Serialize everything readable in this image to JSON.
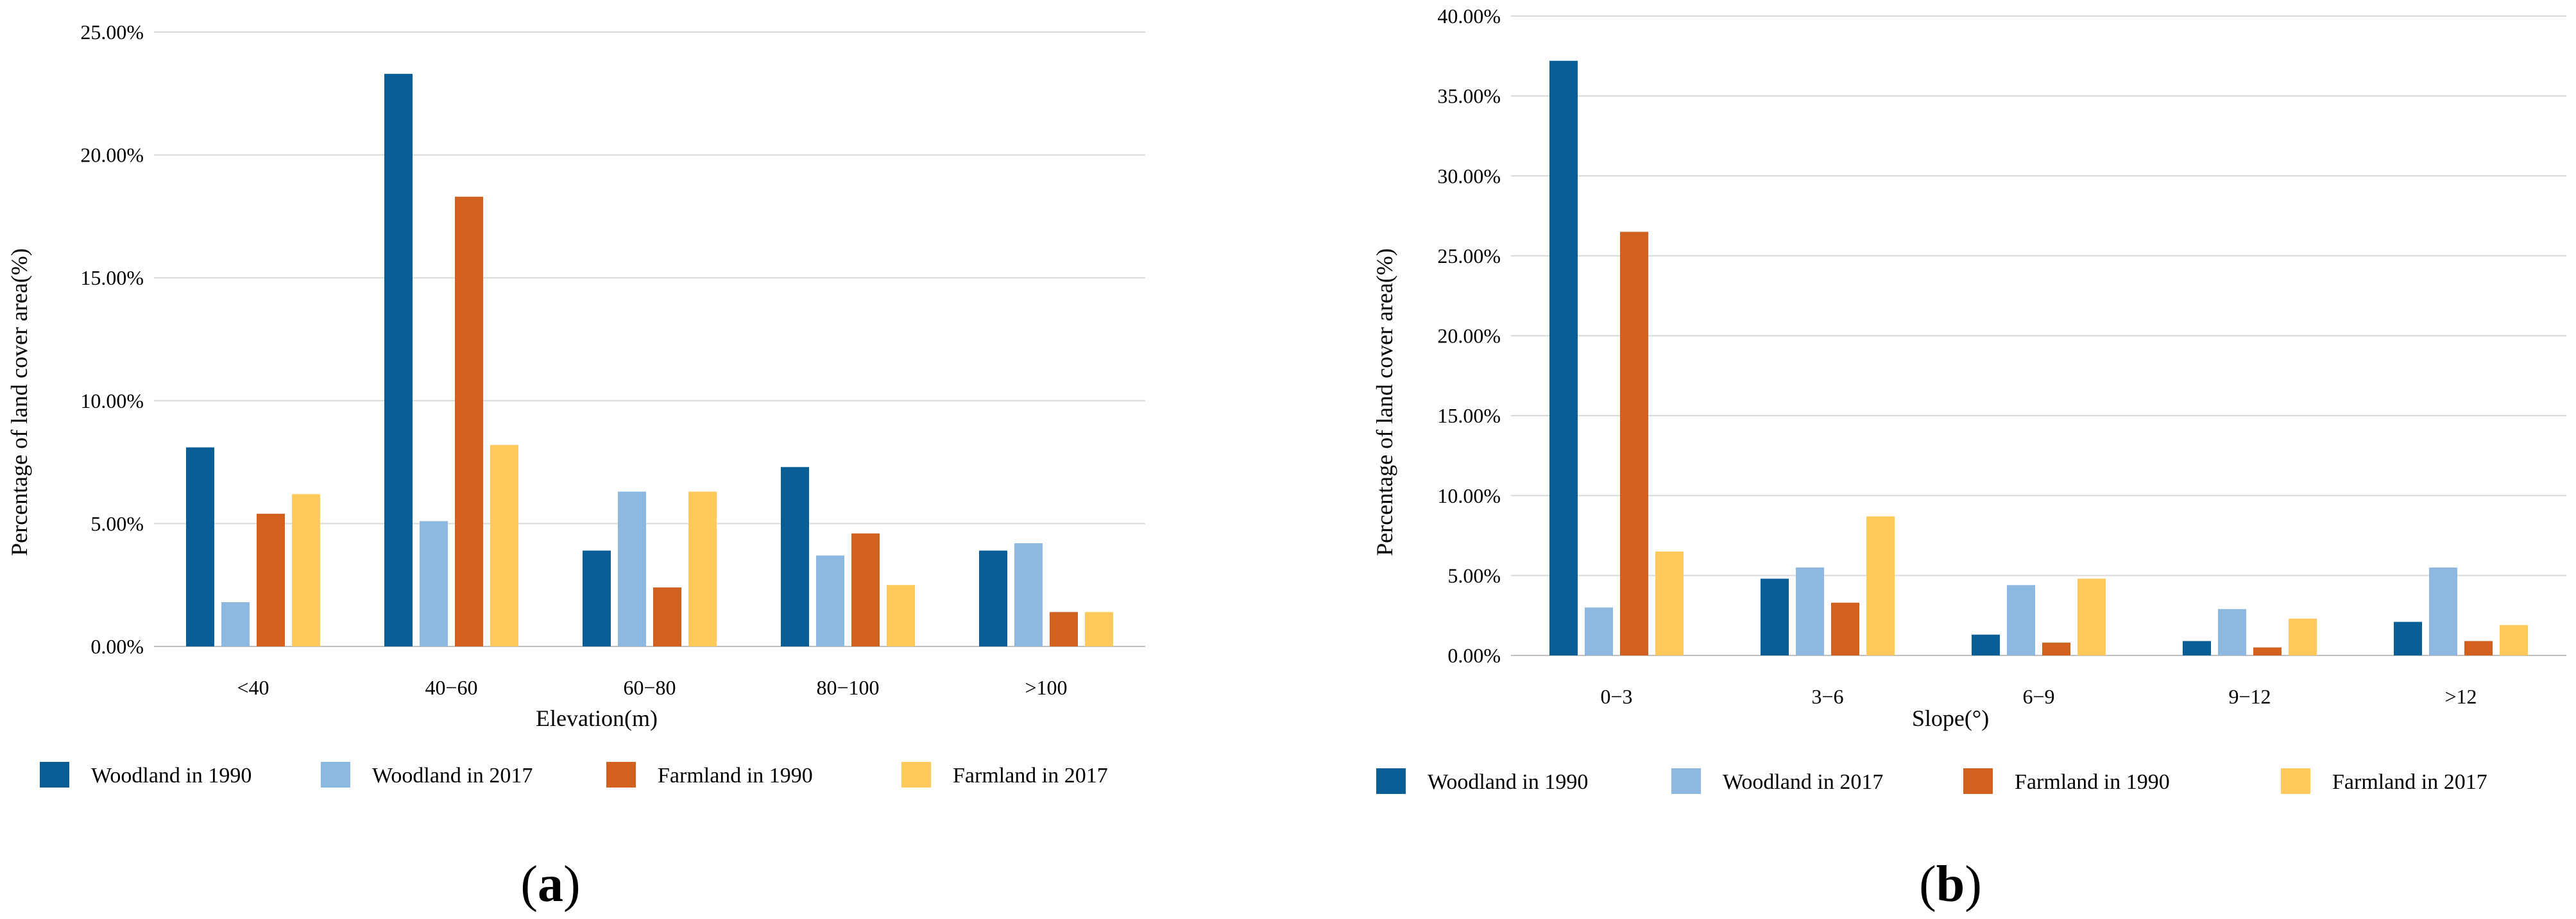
{
  "chart_data": [
    {
      "type": "bar",
      "panel_label": "a",
      "title": "",
      "xlabel": "Elevation(m)",
      "ylabel": "Percentage of land cover area(%)",
      "ylim": [
        0,
        25
      ],
      "y_ticks": [
        "0.00%",
        "5.00%",
        "10.00%",
        "15.00%",
        "20.00%",
        "25.00%"
      ],
      "grid": true,
      "legend_position": "bottom",
      "categories": [
        "<40",
        "40−60",
        "60−80",
        "80−100",
        ">100"
      ],
      "series": [
        {
          "name": "Woodland in 1990",
          "color": "#0A5E96",
          "values": [
            8.1,
            23.3,
            3.9,
            7.3,
            3.9
          ]
        },
        {
          "name": "Woodland in 2017",
          "color": "#8DB9E0",
          "values": [
            1.8,
            5.1,
            6.3,
            3.7,
            4.2
          ]
        },
        {
          "name": "Farmland in 1990",
          "color": "#D2601F",
          "values": [
            5.4,
            18.3,
            2.4,
            4.6,
            1.4
          ]
        },
        {
          "name": "Farmland in 2017",
          "color": "#FFC95B",
          "values": [
            6.2,
            8.2,
            6.3,
            2.5,
            1.4
          ]
        }
      ]
    },
    {
      "type": "bar",
      "panel_label": "b",
      "title": "",
      "xlabel": "Slope(°)",
      "ylabel": "Percentage of land cover area(%)",
      "ylim": [
        0,
        40
      ],
      "y_ticks": [
        "0.00%",
        "5.00%",
        "10.00%",
        "15.00%",
        "20.00%",
        "25.00%",
        "30.00%",
        "35.00%",
        "40.00%"
      ],
      "grid": true,
      "legend_position": "bottom",
      "categories": [
        "0−3",
        "3−6",
        "6−9",
        "9−12",
        ">12"
      ],
      "series": [
        {
          "name": "Woodland in 1990",
          "color": "#0A5E96",
          "values": [
            37.2,
            4.8,
            1.3,
            0.9,
            2.1
          ]
        },
        {
          "name": "Woodland in 2017",
          "color": "#8DB9E0",
          "values": [
            3.0,
            5.5,
            4.4,
            2.9,
            5.5
          ]
        },
        {
          "name": "Farmland in 1990",
          "color": "#D2601F",
          "values": [
            26.5,
            3.3,
            0.8,
            0.5,
            0.9
          ]
        },
        {
          "name": "Farmland in 2017",
          "color": "#FFC95B",
          "values": [
            6.5,
            8.7,
            4.8,
            2.3,
            1.9
          ]
        }
      ]
    }
  ]
}
